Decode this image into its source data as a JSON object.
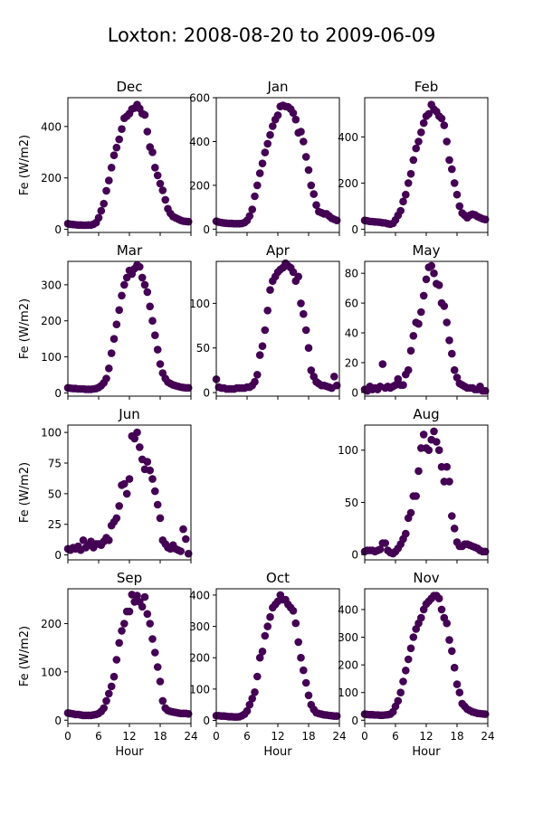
{
  "figure": {
    "title": "Loxton: 2008-08-20 to 2009-06-09",
    "xlabel": "Hour",
    "ylabel": "Fe (W/m2)",
    "marker_color": "#440154"
  },
  "chart_data": [
    {
      "type": "scatter",
      "title": "Dec",
      "xlim": [
        0,
        24
      ],
      "ylim": [
        -12,
        512
      ],
      "yticks": [
        0,
        200,
        400
      ],
      "xticks": [
        0,
        6,
        12,
        18,
        24
      ],
      "show_ylabel": true,
      "show_xticklabels": false,
      "show_xlabel": false,
      "x": [
        0,
        0.5,
        1,
        1.5,
        2,
        2.5,
        3,
        3.5,
        4,
        4.5,
        5,
        5.5,
        6,
        6.5,
        7,
        7.5,
        8,
        8.5,
        9,
        9.5,
        10,
        10.5,
        11,
        11.5,
        12,
        12.5,
        13,
        13.5,
        14,
        14.5,
        15,
        15.5,
        16,
        16.5,
        17,
        17.5,
        18,
        18.5,
        19,
        19.5,
        20,
        20.5,
        21,
        21.5,
        22,
        22.5,
        23,
        23.5
      ],
      "y": [
        22,
        20,
        19,
        18,
        17,
        17,
        16,
        16,
        17,
        17,
        20,
        26,
        45,
        72,
        100,
        150,
        190,
        240,
        288,
        318,
        350,
        390,
        432,
        440,
        450,
        468,
        472,
        485,
        470,
        450,
        445,
        380,
        320,
        300,
        240,
        210,
        178,
        152,
        115,
        80,
        62,
        50,
        45,
        40,
        35,
        32,
        31,
        30
      ]
    },
    {
      "type": "scatter",
      "title": "Jan",
      "xlim": [
        0,
        24
      ],
      "ylim": [
        -15,
        600
      ],
      "yticks": [
        0,
        200,
        400,
        600
      ],
      "xticks": [
        0,
        6,
        12,
        18,
        24
      ],
      "show_ylabel": false,
      "show_xticklabels": false,
      "show_xlabel": false,
      "x": [
        0,
        0.5,
        1,
        1.5,
        2,
        2.5,
        3,
        3.5,
        4,
        4.5,
        5,
        5.5,
        6,
        6.5,
        7,
        7.5,
        8,
        8.5,
        9,
        9.5,
        10,
        10.5,
        11,
        11.5,
        12,
        12.5,
        13,
        13.5,
        14,
        14.5,
        15,
        15.5,
        16,
        16.5,
        17,
        17.5,
        18,
        18.5,
        19,
        19.5,
        20,
        20.5,
        21,
        21.5,
        22,
        22.5,
        23,
        23.5
      ],
      "y": [
        36,
        32,
        30,
        28,
        27,
        26,
        26,
        25,
        25,
        25,
        26,
        30,
        40,
        60,
        90,
        150,
        200,
        255,
        300,
        350,
        390,
        430,
        470,
        500,
        520,
        560,
        565,
        560,
        558,
        548,
        530,
        500,
        440,
        445,
        400,
        330,
        270,
        200,
        160,
        110,
        80,
        75,
        70,
        70,
        60,
        50,
        45,
        40
      ]
    },
    {
      "type": "scatter",
      "title": "Feb",
      "xlim": [
        0,
        24
      ],
      "ylim": [
        -14,
        570
      ],
      "yticks": [
        0,
        200,
        400
      ],
      "xticks": [
        0,
        6,
        12,
        18,
        24
      ],
      "show_ylabel": false,
      "show_xticklabels": false,
      "show_xlabel": false,
      "x": [
        0,
        0.5,
        1,
        1.5,
        2,
        2.5,
        3,
        3.5,
        4,
        4.5,
        5,
        5.5,
        6,
        6.5,
        7,
        7.5,
        8,
        8.5,
        9,
        9.5,
        10,
        10.5,
        11,
        11.5,
        12,
        12.5,
        13,
        13.5,
        14,
        14.5,
        15,
        15.5,
        16,
        16.5,
        17,
        17.5,
        18,
        18.5,
        19,
        19.5,
        20,
        20.5,
        21,
        21.5,
        22,
        22.5,
        23,
        23.5
      ],
      "y": [
        38,
        36,
        34,
        33,
        32,
        31,
        30,
        28,
        27,
        24,
        22,
        25,
        40,
        60,
        80,
        120,
        150,
        200,
        240,
        300,
        350,
        380,
        420,
        460,
        490,
        500,
        540,
        520,
        510,
        490,
        480,
        450,
        380,
        300,
        260,
        200,
        150,
        100,
        70,
        60,
        50,
        60,
        65,
        62,
        55,
        50,
        45,
        42
      ]
    },
    {
      "type": "scatter",
      "title": "Mar",
      "xlim": [
        0,
        24
      ],
      "ylim": [
        -9,
        365
      ],
      "yticks": [
        0,
        100,
        200,
        300
      ],
      "xticks": [
        0,
        6,
        12,
        18,
        24
      ],
      "show_ylabel": true,
      "show_xticklabels": false,
      "show_xlabel": false,
      "x": [
        0,
        0.5,
        1,
        1.5,
        2,
        2.5,
        3,
        3.5,
        4,
        4.5,
        5,
        5.5,
        6,
        6.5,
        7,
        7.5,
        8,
        8.5,
        9,
        9.5,
        10,
        10.5,
        11,
        11.5,
        12,
        12.5,
        13,
        13.5,
        14,
        14.5,
        15,
        15.5,
        16,
        16.5,
        17,
        17.5,
        18,
        18.5,
        19,
        19.5,
        20,
        20.5,
        21,
        21.5,
        22,
        22.5,
        23,
        23.5
      ],
      "y": [
        14,
        13,
        12,
        12,
        11,
        11,
        11,
        10,
        10,
        10,
        11,
        12,
        15,
        20,
        28,
        40,
        68,
        110,
        150,
        190,
        230,
        270,
        300,
        320,
        340,
        330,
        345,
        355,
        350,
        320,
        300,
        280,
        240,
        200,
        160,
        120,
        80,
        55,
        40,
        30,
        26,
        22,
        20,
        18,
        16,
        15,
        14,
        14
      ]
    },
    {
      "type": "scatter",
      "title": "Apr",
      "xlim": [
        0,
        24
      ],
      "ylim": [
        -4,
        147
      ],
      "yticks": [
        0,
        50,
        100
      ],
      "xticks": [
        0,
        6,
        12,
        18,
        24
      ],
      "show_ylabel": false,
      "show_xticklabels": false,
      "show_xlabel": false,
      "x": [
        0,
        0.5,
        1,
        1.5,
        2,
        2.5,
        3,
        3.5,
        4,
        4.5,
        5,
        5.5,
        6,
        6.5,
        7,
        7.5,
        8,
        8.5,
        9,
        9.5,
        10,
        10.5,
        11,
        11.5,
        12,
        12.5,
        13,
        13.5,
        14,
        14.5,
        15,
        15.5,
        16,
        16.5,
        17,
        17.5,
        18,
        18.5,
        19,
        19.5,
        20,
        20.5,
        21,
        21.5,
        22,
        22.5,
        23,
        23.5
      ],
      "y": [
        15,
        6,
        5,
        5,
        4,
        4,
        4,
        4,
        5,
        5,
        5,
        5,
        6,
        6,
        8,
        12,
        20,
        42,
        52,
        70,
        92,
        115,
        125,
        130,
        135,
        138,
        140,
        145,
        142,
        140,
        135,
        125,
        130,
        100,
        88,
        70,
        50,
        25,
        18,
        12,
        10,
        8,
        8,
        7,
        6,
        5,
        18,
        8
      ]
    },
    {
      "type": "scatter",
      "title": "May",
      "xlim": [
        0,
        24
      ],
      "ylim": [
        -2.5,
        88
      ],
      "yticks": [
        0,
        20,
        40,
        60,
        80
      ],
      "xticks": [
        0,
        6,
        12,
        18,
        24
      ],
      "show_ylabel": false,
      "show_xticklabels": false,
      "show_xlabel": false,
      "x": [
        0,
        0.5,
        1,
        1.5,
        2,
        2.5,
        3,
        3.5,
        4,
        4.5,
        5,
        5.5,
        6,
        6.5,
        7,
        7.5,
        8,
        8.5,
        9,
        9.5,
        10,
        10.5,
        11,
        11.5,
        12,
        12.5,
        13,
        13.5,
        14,
        14.5,
        15,
        15.5,
        16,
        16.5,
        17,
        17.5,
        18,
        18.5,
        19,
        19.5,
        20,
        20.5,
        21,
        21.5,
        22,
        22.5,
        23,
        23.5
      ],
      "y": [
        2,
        1,
        4,
        2,
        3,
        2,
        4,
        19,
        3,
        4,
        3,
        4,
        5,
        9,
        5,
        5,
        12,
        15,
        28,
        38,
        47,
        46,
        54,
        65,
        76,
        84,
        85,
        80,
        73,
        72,
        60,
        58,
        47,
        35,
        26,
        15,
        10,
        6,
        5,
        4,
        3,
        3,
        3,
        2,
        2,
        4,
        1,
        1
      ]
    },
    {
      "type": "scatter",
      "title": "Jun",
      "xlim": [
        0,
        24
      ],
      "ylim": [
        -4,
        106
      ],
      "yticks": [
        0,
        25,
        50,
        75,
        100
      ],
      "xticks": [
        0,
        6,
        12,
        18,
        24
      ],
      "show_ylabel": true,
      "show_xticklabels": false,
      "show_xlabel": false,
      "x": [
        0,
        0.5,
        1,
        1.5,
        2,
        2.5,
        3,
        3.5,
        4,
        4.5,
        5,
        5.5,
        6,
        6.5,
        7,
        7.5,
        8,
        8.5,
        9,
        9.5,
        10,
        10.5,
        11,
        11.5,
        12,
        12.5,
        13,
        13.5,
        14,
        14.5,
        15,
        15.5,
        16,
        16.5,
        17,
        17.5,
        18,
        18.5,
        19,
        19.5,
        20,
        20.5,
        21,
        21.5,
        22,
        22.5,
        23,
        23.5
      ],
      "y": [
        5,
        4,
        6,
        5,
        7,
        4,
        12,
        6,
        8,
        11,
        6,
        9,
        9,
        8,
        11,
        14,
        12,
        24,
        27,
        30,
        40,
        57,
        58,
        50,
        62,
        97,
        95,
        100,
        88,
        78,
        70,
        76,
        69,
        62,
        52,
        41,
        30,
        12,
        9,
        6,
        5,
        8,
        5,
        4,
        3,
        21,
        13,
        1
      ]
    },
    null,
    {
      "type": "scatter",
      "title": "Aug",
      "xlim": [
        0,
        24
      ],
      "ylim": [
        -5,
        124
      ],
      "yticks": [
        0,
        50,
        100
      ],
      "xticks": [
        0,
        6,
        12,
        18,
        24
      ],
      "show_ylabel": false,
      "show_xticklabels": false,
      "show_xlabel": false,
      "x": [
        0,
        0.5,
        1,
        1.5,
        2,
        2.5,
        3,
        3.5,
        4,
        4.5,
        5,
        5.5,
        6,
        6.5,
        7,
        7.5,
        8,
        8.5,
        9,
        9.5,
        10,
        10.5,
        11,
        11.5,
        12,
        12.5,
        13,
        13.5,
        14,
        14.5,
        15,
        15.5,
        16,
        16.5,
        17,
        17.5,
        18,
        18.5,
        19,
        19.5,
        20,
        20.5,
        21,
        21.5,
        22,
        22.5,
        23,
        23.5
      ],
      "y": [
        3,
        4,
        4,
        4,
        3,
        4,
        5,
        11,
        11,
        4,
        2,
        1,
        3,
        6,
        10,
        15,
        20,
        35,
        40,
        56,
        56,
        80,
        102,
        115,
        102,
        100,
        110,
        118,
        108,
        100,
        84,
        70,
        84,
        70,
        37,
        25,
        12,
        8,
        8,
        10,
        10,
        9,
        8,
        7,
        6,
        4,
        3,
        3
      ]
    },
    {
      "type": "scatter",
      "title": "Sep",
      "xlim": [
        0,
        24
      ],
      "ylim": [
        -7,
        272
      ],
      "yticks": [
        0,
        100,
        200
      ],
      "xticks": [
        0,
        6,
        12,
        18,
        24
      ],
      "show_ylabel": true,
      "show_xticklabels": true,
      "show_xlabel": true,
      "x": [
        0,
        0.5,
        1,
        1.5,
        2,
        2.5,
        3,
        3.5,
        4,
        4.5,
        5,
        5.5,
        6,
        6.5,
        7,
        7.5,
        8,
        8.5,
        9,
        9.5,
        10,
        10.5,
        11,
        11.5,
        12,
        12.5,
        13,
        13.5,
        14,
        14.5,
        15,
        15.5,
        16,
        16.5,
        17,
        17.5,
        18,
        18.5,
        19,
        19.5,
        20,
        20.5,
        21,
        21.5,
        22,
        22.5,
        23,
        23.5
      ],
      "y": [
        15,
        14,
        13,
        12,
        12,
        11,
        10,
        10,
        10,
        10,
        11,
        12,
        14,
        18,
        25,
        40,
        55,
        70,
        90,
        125,
        160,
        185,
        200,
        225,
        225,
        260,
        245,
        258,
        245,
        235,
        255,
        220,
        200,
        168,
        140,
        110,
        80,
        40,
        25,
        20,
        18,
        17,
        16,
        15,
        14,
        14,
        14,
        13
      ]
    },
    {
      "type": "scatter",
      "title": "Oct",
      "xlim": [
        0,
        24
      ],
      "ylim": [
        -10,
        420
      ],
      "yticks": [
        0,
        100,
        200,
        300,
        400
      ],
      "xticks": [
        0,
        6,
        12,
        18,
        24
      ],
      "show_ylabel": false,
      "show_xticklabels": true,
      "show_xlabel": true,
      "x": [
        0,
        0.5,
        1,
        1.5,
        2,
        2.5,
        3,
        3.5,
        4,
        4.5,
        5,
        5.5,
        6,
        6.5,
        7,
        7.5,
        8,
        8.5,
        9,
        9.5,
        10,
        10.5,
        11,
        11.5,
        12,
        12.5,
        13,
        13.5,
        14,
        14.5,
        15,
        15.5,
        16,
        16.5,
        17,
        17.5,
        18,
        18.5,
        19,
        19.5,
        20,
        20.5,
        21,
        21.5,
        22,
        22.5,
        23,
        23.5
      ],
      "y": [
        15,
        15,
        14,
        14,
        13,
        12,
        12,
        11,
        11,
        12,
        15,
        20,
        30,
        50,
        70,
        90,
        140,
        200,
        220,
        270,
        300,
        330,
        360,
        370,
        380,
        400,
        385,
        385,
        370,
        360,
        350,
        310,
        250,
        200,
        160,
        120,
        80,
        50,
        35,
        25,
        22,
        20,
        18,
        17,
        16,
        15,
        14,
        14
      ]
    },
    {
      "type": "scatter",
      "title": "Nov",
      "xlim": [
        0,
        24
      ],
      "ylim": [
        -12,
        475
      ],
      "yticks": [
        0,
        100,
        200,
        300,
        400
      ],
      "xticks": [
        0,
        6,
        12,
        18,
        24
      ],
      "show_ylabel": false,
      "show_xticklabels": true,
      "show_xlabel": true,
      "x": [
        0,
        0.5,
        1,
        1.5,
        2,
        2.5,
        3,
        3.5,
        4,
        4.5,
        5,
        5.5,
        6,
        6.5,
        7,
        7.5,
        8,
        8.5,
        9,
        9.5,
        10,
        10.5,
        11,
        11.5,
        12,
        12.5,
        13,
        13.5,
        14,
        14.5,
        15,
        15.5,
        16,
        16.5,
        17,
        17.5,
        18,
        18.5,
        19,
        19.5,
        20,
        20.5,
        21,
        21.5,
        22,
        22.5,
        23,
        23.5
      ],
      "y": [
        22,
        21,
        20,
        20,
        19,
        19,
        18,
        18,
        19,
        20,
        22,
        30,
        50,
        70,
        100,
        140,
        180,
        220,
        260,
        300,
        330,
        350,
        370,
        400,
        420,
        430,
        440,
        450,
        450,
        440,
        400,
        370,
        350,
        290,
        250,
        190,
        130,
        100,
        60,
        50,
        40,
        35,
        30,
        28,
        25,
        24,
        23,
        22
      ]
    }
  ]
}
